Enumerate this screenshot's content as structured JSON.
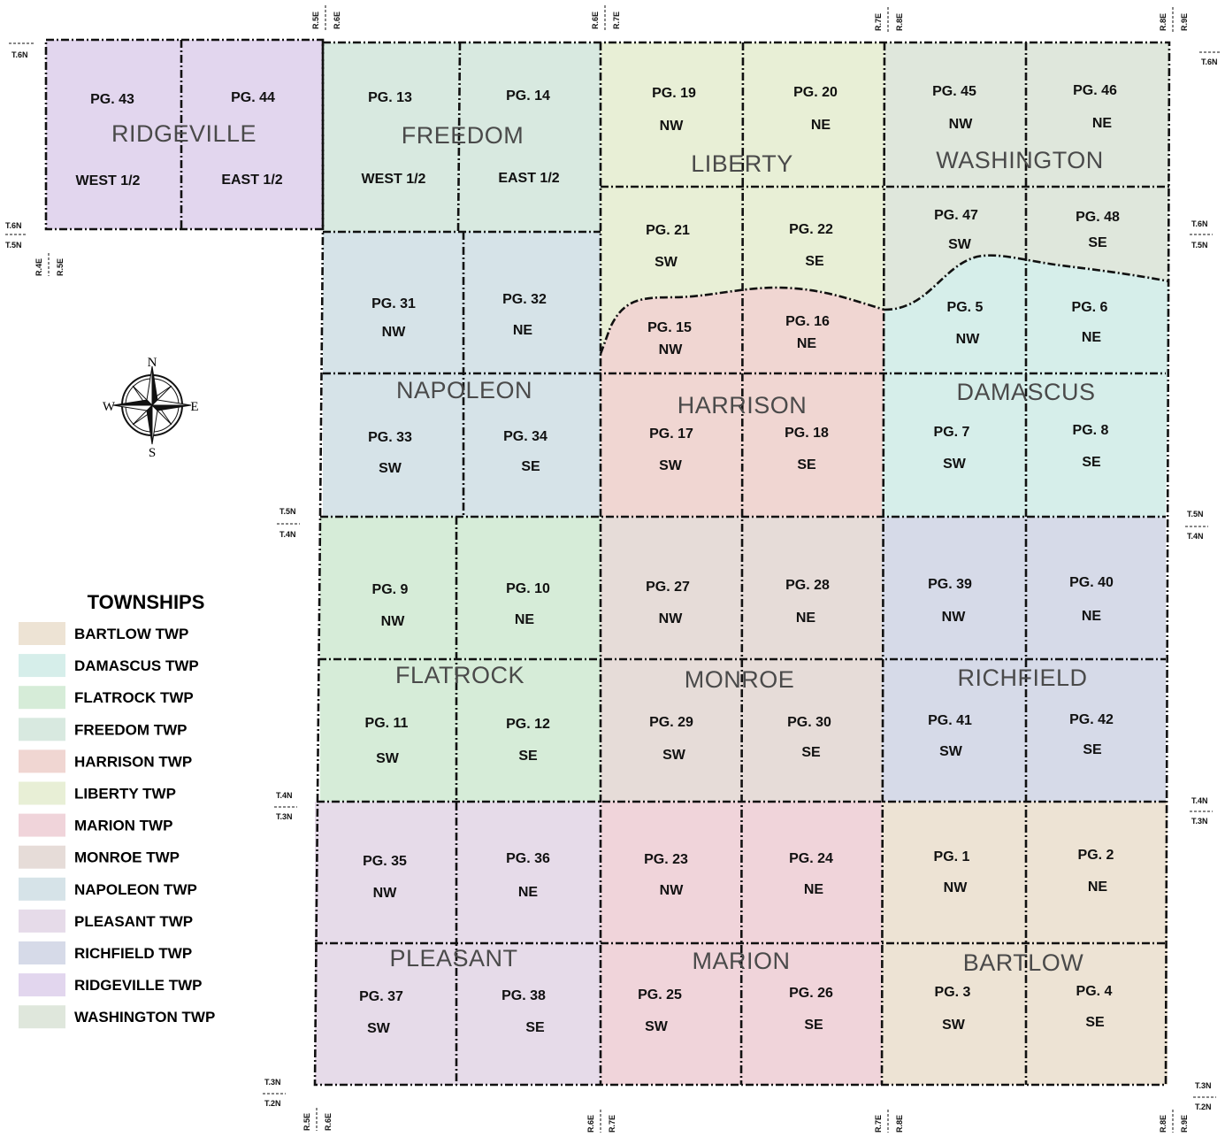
{
  "colors": {
    "bartlow": "#ede3d4",
    "damascus": "#d6eeea",
    "flatrock": "#d6ecd8",
    "freedom": "#d8e9e0",
    "harrison": "#f0d6d2",
    "liberty": "#e8efd6",
    "marion": "#f0d4da",
    "monroe": "#e6dcd8",
    "napoleon": "#d6e3e8",
    "pleasant": "#e6dbe9",
    "richfield": "#d6dae8",
    "ridgeville": "#e2d6ee",
    "washington": "#dfe7dc"
  },
  "township_names": {
    "ridgeville": "RIDGEVILLE",
    "freedom": "FREEDOM",
    "liberty": "LIBERTY",
    "washington": "WASHINGTON",
    "napoleon": "NAPOLEON",
    "harrison": "HARRISON",
    "damascus": "DAMASCUS",
    "flatrock": "FLATROCK",
    "monroe": "MONROE",
    "richfield": "RICHFIELD",
    "pleasant": "PLEASANT",
    "marion": "MARION",
    "bartlow": "BARTLOW"
  },
  "pages": [
    {
      "pg": "PG. 43",
      "sub": "WEST 1/2"
    },
    {
      "pg": "PG. 44",
      "sub": "EAST 1/2"
    },
    {
      "pg": "PG. 13",
      "sub": "WEST 1/2"
    },
    {
      "pg": "PG. 14",
      "sub": "EAST 1/2"
    },
    {
      "pg": "PG. 19",
      "sub": "NW"
    },
    {
      "pg": "PG. 20",
      "sub": "NE"
    },
    {
      "pg": "PG. 45",
      "sub": "NW"
    },
    {
      "pg": "PG. 46",
      "sub": "NE"
    },
    {
      "pg": "PG. 21",
      "sub": "SW"
    },
    {
      "pg": "PG. 22",
      "sub": "SE"
    },
    {
      "pg": "PG. 47",
      "sub": "SW"
    },
    {
      "pg": "PG. 48",
      "sub": "SE"
    },
    {
      "pg": "PG. 31",
      "sub": "NW"
    },
    {
      "pg": "PG. 32",
      "sub": "NE"
    },
    {
      "pg": "PG. 15",
      "sub": "NW"
    },
    {
      "pg": "PG. 16",
      "sub": "NE"
    },
    {
      "pg": "PG. 5",
      "sub": "NW"
    },
    {
      "pg": "PG. 6",
      "sub": "NE"
    },
    {
      "pg": "PG. 33",
      "sub": "SW"
    },
    {
      "pg": "PG. 34",
      "sub": "SE"
    },
    {
      "pg": "PG. 17",
      "sub": "SW"
    },
    {
      "pg": "PG. 18",
      "sub": "SE"
    },
    {
      "pg": "PG. 7",
      "sub": "SW"
    },
    {
      "pg": "PG. 8",
      "sub": "SE"
    },
    {
      "pg": "PG. 9",
      "sub": "NW"
    },
    {
      "pg": "PG. 10",
      "sub": "NE"
    },
    {
      "pg": "PG. 27",
      "sub": "NW"
    },
    {
      "pg": "PG. 28",
      "sub": "NE"
    },
    {
      "pg": "PG. 39",
      "sub": "NW"
    },
    {
      "pg": "PG. 40",
      "sub": "NE"
    },
    {
      "pg": "PG. 11",
      "sub": "SW"
    },
    {
      "pg": "PG. 12",
      "sub": "SE"
    },
    {
      "pg": "PG. 29",
      "sub": "SW"
    },
    {
      "pg": "PG. 30",
      "sub": "SE"
    },
    {
      "pg": "PG. 41",
      "sub": "SW"
    },
    {
      "pg": "PG. 42",
      "sub": "SE"
    },
    {
      "pg": "PG. 35",
      "sub": "NW"
    },
    {
      "pg": "PG. 36",
      "sub": "NE"
    },
    {
      "pg": "PG. 23",
      "sub": "NW"
    },
    {
      "pg": "PG. 24",
      "sub": "NE"
    },
    {
      "pg": "PG. 1",
      "sub": "NW"
    },
    {
      "pg": "PG. 2",
      "sub": "NE"
    },
    {
      "pg": "PG. 37",
      "sub": "SW"
    },
    {
      "pg": "PG. 38",
      "sub": "SE"
    },
    {
      "pg": "PG. 25",
      "sub": "SW"
    },
    {
      "pg": "PG. 26",
      "sub": "SE"
    },
    {
      "pg": "PG. 3",
      "sub": "SW"
    },
    {
      "pg": "PG. 4",
      "sub": "SE"
    }
  ],
  "range_labels": {
    "r5e": "R.5E",
    "r6e": "R.6E",
    "r7e": "R.7E",
    "r8e": "R.8E",
    "r9e": "R.9E",
    "r4e": "R.4E"
  },
  "township_labels": {
    "t6n": "T.6N",
    "t5n": "T.5N",
    "t4n": "T.4N",
    "t3n": "T.3N",
    "t2n": "T.2N"
  },
  "compass": {
    "n": "N",
    "s": "S",
    "e": "E",
    "w": "W"
  },
  "legend": {
    "title": "TOWNSHIPS",
    "items": [
      {
        "label": "BARTLOW TWP",
        "color": "#ede3d4"
      },
      {
        "label": "DAMASCUS TWP",
        "color": "#d6eeea"
      },
      {
        "label": "FLATROCK TWP",
        "color": "#d6ecd8"
      },
      {
        "label": "FREEDOM TWP",
        "color": "#d8e9e0"
      },
      {
        "label": "HARRISON TWP",
        "color": "#f0d6d2"
      },
      {
        "label": "LIBERTY TWP",
        "color": "#e8efd6"
      },
      {
        "label": "MARION TWP",
        "color": "#f0d4da"
      },
      {
        "label": "MONROE TWP",
        "color": "#e6dcd8"
      },
      {
        "label": "NAPOLEON TWP",
        "color": "#d6e3e8"
      },
      {
        "label": "PLEASANT TWP",
        "color": "#e6dbe9"
      },
      {
        "label": "RICHFIELD TWP",
        "color": "#d6dae8"
      },
      {
        "label": "RIDGEVILLE TWP",
        "color": "#e2d6ee"
      },
      {
        "label": "WASHINGTON TWP",
        "color": "#dfe7dc"
      }
    ]
  }
}
